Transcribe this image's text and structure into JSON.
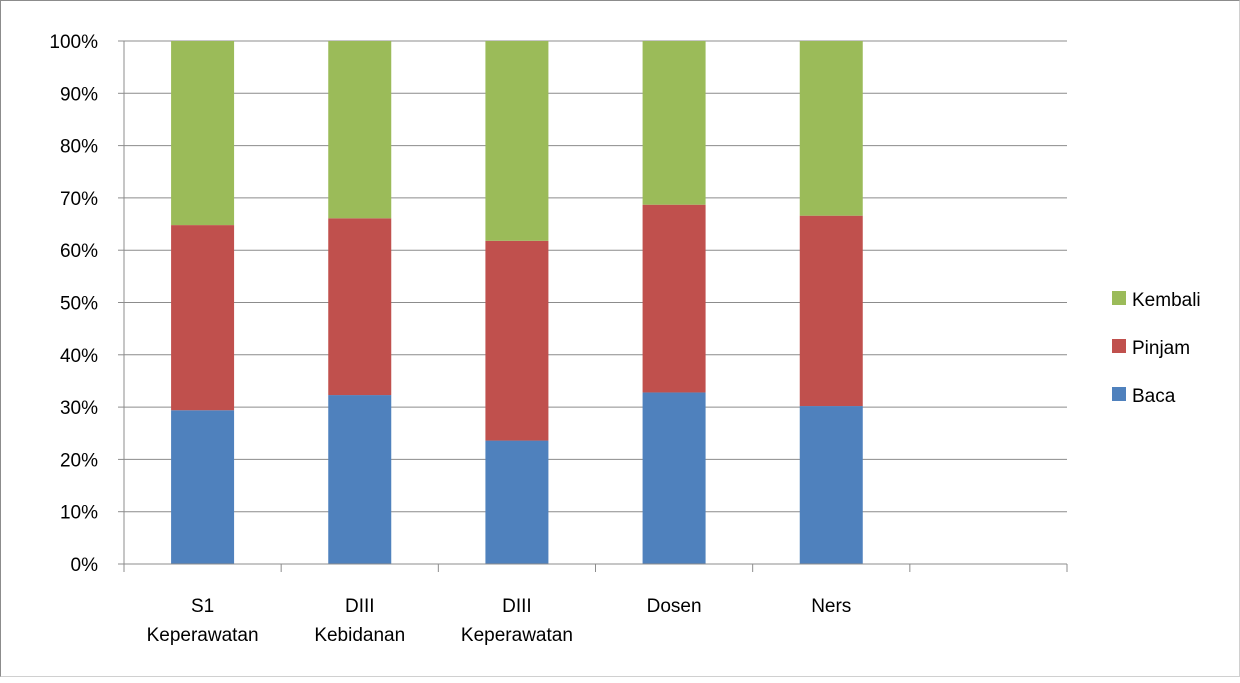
{
  "chart_data": {
    "type": "bar",
    "stacked": true,
    "percent_stacked": true,
    "title": "",
    "xlabel": "",
    "ylabel": "",
    "ylim": [
      0,
      100
    ],
    "y_ticks": [
      "0%",
      "10%",
      "20%",
      "30%",
      "40%",
      "50%",
      "60%",
      "70%",
      "80%",
      "90%",
      "100%"
    ],
    "grid": true,
    "legend_position": "right",
    "categories": [
      [
        "S1",
        "Keperawatan"
      ],
      [
        "DIII",
        "Kebidanan"
      ],
      [
        "DIII",
        "Keperawatan"
      ],
      [
        "Dosen"
      ],
      [
        "Ners"
      ],
      [
        ""
      ]
    ],
    "series": [
      {
        "name": "Baca",
        "color": "#4f81bd",
        "values": [
          29.4,
          32.3,
          23.6,
          32.8,
          30.2,
          null
        ]
      },
      {
        "name": "Pinjam",
        "color": "#c0504d",
        "values": [
          35.4,
          33.8,
          38.2,
          35.9,
          36.4,
          null
        ]
      },
      {
        "name": "Kembali",
        "color": "#9bbb59",
        "values": [
          35.2,
          33.9,
          38.2,
          31.3,
          33.4,
          null
        ]
      }
    ],
    "legend_order": [
      "Kembali",
      "Pinjam",
      "Baca"
    ]
  }
}
